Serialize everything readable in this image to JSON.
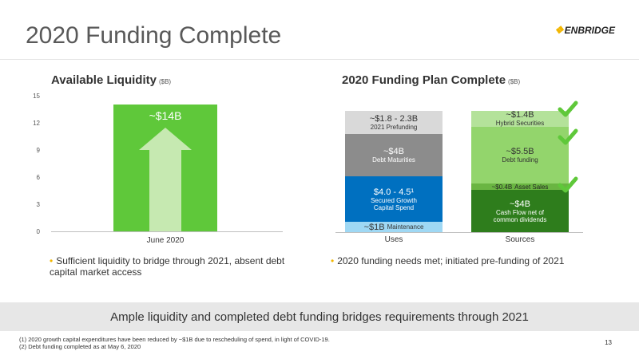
{
  "header": {
    "title": "2020 Funding Complete",
    "logo_text": "ENBRIDGE",
    "brand_color": "#f2b600"
  },
  "liquidity": {
    "title": "Available Liquidity",
    "unit": "($B)",
    "y_ticks": [
      "15",
      "12",
      "9",
      "6",
      "3",
      "0"
    ],
    "bar_label": "~$14B",
    "x_label": "June 2020",
    "bullet": "Sufficient liquidity to bridge through 2021, absent debt capital market access"
  },
  "funding": {
    "title": "2020 Funding Plan Complete",
    "unit": "($B)",
    "x_labels": [
      "Uses",
      "Sources"
    ],
    "uses": [
      {
        "value": "~$1.8 - 2.3B",
        "label": "2021 Prefunding"
      },
      {
        "value": "~$4B",
        "label": "Debt Maturities"
      },
      {
        "value": "$4.0 - 4.5¹",
        "label": "Secured Growth Capital Spend"
      },
      {
        "value": "~$1B",
        "label": "Maintenance"
      }
    ],
    "sources": [
      {
        "value": "~$1.4B",
        "label": "Hybrid Securities"
      },
      {
        "value": "~$5.5B",
        "label": "Debt funding"
      },
      {
        "value": "~$0.4B",
        "label": "Asset Sales"
      },
      {
        "value": "~$4B",
        "label": "Cash Flow net of common dividends"
      }
    ],
    "bullet": "2020 funding needs met; initiated pre-funding of 2021",
    "check_icon": "check-icon"
  },
  "chart_data": [
    {
      "type": "bar",
      "title": "Available Liquidity",
      "ylabel": "($B)",
      "categories": [
        "June 2020"
      ],
      "values": [
        14
      ],
      "ylim": [
        0,
        15
      ],
      "y_ticks": [
        0,
        3,
        6,
        9,
        12,
        15
      ],
      "data_labels": [
        "~$14B"
      ],
      "grid": false
    },
    {
      "type": "bar",
      "stacked": true,
      "title": "2020 Funding Plan Complete",
      "ylabel": "($B)",
      "categories": [
        "Uses",
        "Sources"
      ],
      "series": [
        {
          "name": "Maintenance",
          "values": [
            1,
            null
          ]
        },
        {
          "name": "Secured Growth Capital Spend",
          "values": [
            4.25,
            null
          ]
        },
        {
          "name": "Debt Maturities",
          "values": [
            4,
            null
          ]
        },
        {
          "name": "2021 Prefunding",
          "values": [
            2.05,
            null
          ]
        },
        {
          "name": "Cash Flow net of common dividends",
          "values": [
            null,
            4
          ]
        },
        {
          "name": "Asset Sales",
          "values": [
            null,
            0.4
          ]
        },
        {
          "name": "Debt funding",
          "values": [
            null,
            5.5
          ]
        },
        {
          "name": "Hybrid Securities",
          "values": [
            null,
            1.4
          ]
        }
      ]
    }
  ],
  "banner": "Ample liquidity and completed debt funding bridges requirements through 2021",
  "footnotes": [
    "(1) 2020 growth capital expenditures have been reduced by ~$1B due to rescheduling of spend, in light of COVID-19.",
    "(2) Debt funding completed as at May 6, 2020"
  ],
  "page_number": "13"
}
